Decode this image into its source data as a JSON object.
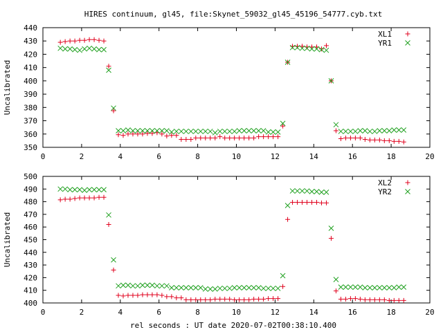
{
  "title": "HIRES continuum, gl45, file:Skynet_59032_gl45_45196_54777.cyb.txt",
  "xlabel": "rel seconds : UT date 2020-07-02T00:38:10.400",
  "colors": {
    "red": "#e0001c",
    "green": "#1fa01f",
    "axis": "#000000"
  },
  "chart_data": [
    {
      "type": "scatter",
      "ylabel": "Uncalibrated",
      "xlim": [
        0,
        20
      ],
      "ylim": [
        350,
        440
      ],
      "xticks": [
        0,
        2,
        4,
        6,
        8,
        10,
        12,
        14,
        16,
        18,
        20
      ],
      "yticks": [
        350,
        360,
        370,
        380,
        390,
        400,
        410,
        420,
        430,
        440
      ],
      "series": [
        {
          "name": "XL1",
          "marker": "plus",
          "color": "#e0001c",
          "x": [
            0.9,
            1.15,
            1.4,
            1.65,
            1.9,
            2.15,
            2.4,
            2.65,
            2.9,
            3.15,
            3.4,
            3.65,
            3.9,
            4.15,
            4.4,
            4.65,
            4.9,
            5.15,
            5.4,
            5.65,
            5.9,
            6.15,
            6.4,
            6.65,
            6.9,
            7.15,
            7.4,
            7.65,
            7.9,
            8.15,
            8.4,
            8.65,
            8.9,
            9.15,
            9.4,
            9.65,
            9.9,
            10.15,
            10.4,
            10.65,
            10.9,
            11.15,
            11.4,
            11.65,
            11.9,
            12.15,
            12.4,
            12.65,
            12.9,
            13.15,
            13.4,
            13.65,
            13.9,
            14.15,
            14.4,
            14.65,
            14.9,
            15.15,
            15.4,
            15.65,
            15.9,
            16.15,
            16.4,
            16.65,
            16.9,
            17.15,
            17.4,
            17.65,
            17.9,
            18.15,
            18.4,
            18.65
          ],
          "y": [
            429,
            429.5,
            430,
            430,
            430.5,
            430.5,
            431,
            431,
            430.5,
            430,
            411,
            377.5,
            359.5,
            359,
            360,
            360,
            360,
            360,
            360.5,
            360.5,
            361,
            360,
            358.5,
            359,
            359,
            356,
            356,
            356,
            357,
            357,
            357,
            357,
            357,
            358,
            357,
            357,
            357,
            357,
            357,
            357,
            357,
            358,
            358,
            358,
            358,
            358,
            366,
            414,
            426,
            426,
            426,
            425.5,
            425.5,
            425.5,
            424,
            426.5,
            400,
            362.5,
            356.5,
            357,
            357,
            357,
            357,
            356,
            355.5,
            355.5,
            355.5,
            355,
            355,
            354.5,
            354.5,
            354
          ]
        },
        {
          "name": "YR1",
          "marker": "cross",
          "color": "#1fa01f",
          "x": [
            0.9,
            1.15,
            1.4,
            1.65,
            1.9,
            2.15,
            2.4,
            2.65,
            2.9,
            3.15,
            3.4,
            3.65,
            3.9,
            4.15,
            4.4,
            4.65,
            4.9,
            5.15,
            5.4,
            5.65,
            5.9,
            6.15,
            6.4,
            6.65,
            6.9,
            7.15,
            7.4,
            7.65,
            7.9,
            8.15,
            8.4,
            8.65,
            8.9,
            9.15,
            9.4,
            9.65,
            9.9,
            10.15,
            10.4,
            10.65,
            10.9,
            11.15,
            11.4,
            11.65,
            11.9,
            12.15,
            12.4,
            12.65,
            12.9,
            13.15,
            13.4,
            13.65,
            13.9,
            14.15,
            14.4,
            14.65,
            14.9,
            15.15,
            15.4,
            15.65,
            15.9,
            16.15,
            16.4,
            16.65,
            16.9,
            17.15,
            17.4,
            17.65,
            17.9,
            18.15,
            18.4,
            18.65
          ],
          "y": [
            424.5,
            424,
            424,
            423.5,
            423,
            424,
            424.5,
            424,
            423.5,
            423.5,
            408,
            379.5,
            362.5,
            362.5,
            363,
            362.5,
            362.5,
            362.5,
            362.5,
            362.5,
            362.5,
            362.5,
            362.5,
            361.5,
            362,
            362,
            362,
            362,
            362,
            362,
            362,
            362,
            361,
            362,
            362,
            362,
            362,
            362.5,
            362.5,
            362.5,
            362.5,
            362.5,
            362.5,
            361.5,
            361.5,
            361.5,
            368,
            414,
            425,
            425,
            424.5,
            424.5,
            424,
            424,
            423.5,
            423,
            400,
            367,
            362,
            362,
            362,
            362,
            362.5,
            362.5,
            362,
            362,
            362.5,
            362.5,
            362.5,
            363,
            363,
            363
          ]
        }
      ]
    },
    {
      "type": "scatter",
      "ylabel": "Uncalibrated",
      "xlim": [
        0,
        20
      ],
      "ylim": [
        400,
        500
      ],
      "xticks": [
        0,
        2,
        4,
        6,
        8,
        10,
        12,
        14,
        16,
        18,
        20
      ],
      "yticks": [
        400,
        410,
        420,
        430,
        440,
        450,
        460,
        470,
        480,
        490,
        500
      ],
      "series": [
        {
          "name": "XL2",
          "marker": "plus",
          "color": "#e0001c",
          "x": [
            0.9,
            1.15,
            1.4,
            1.65,
            1.9,
            2.15,
            2.4,
            2.65,
            2.9,
            3.15,
            3.4,
            3.65,
            3.9,
            4.15,
            4.4,
            4.65,
            4.9,
            5.15,
            5.4,
            5.65,
            5.9,
            6.15,
            6.4,
            6.65,
            6.9,
            7.15,
            7.4,
            7.65,
            7.9,
            8.15,
            8.4,
            8.65,
            8.9,
            9.15,
            9.4,
            9.65,
            9.9,
            10.15,
            10.4,
            10.65,
            10.9,
            11.15,
            11.4,
            11.65,
            11.9,
            12.15,
            12.4,
            12.65,
            12.9,
            13.15,
            13.4,
            13.65,
            13.9,
            14.15,
            14.4,
            14.65,
            14.9,
            15.15,
            15.4,
            15.65,
            15.9,
            16.15,
            16.4,
            16.65,
            16.9,
            17.15,
            17.4,
            17.65,
            17.9,
            18.15,
            18.4,
            18.65
          ],
          "y": [
            481.5,
            482,
            482,
            482.5,
            483,
            483,
            483,
            483,
            483.5,
            483.5,
            462,
            426,
            406,
            405.5,
            406,
            406,
            406,
            406.5,
            406.5,
            406.5,
            406.5,
            406,
            405,
            405,
            404,
            404,
            402.5,
            402.5,
            402.5,
            402.5,
            402.5,
            402.5,
            403,
            403,
            403,
            403,
            402.5,
            402.5,
            402.5,
            402.5,
            403,
            403,
            403,
            403.5,
            403.5,
            403.5,
            413,
            466,
            479.5,
            479.5,
            479.5,
            479.5,
            479.5,
            479.5,
            479,
            479,
            451,
            409.5,
            403,
            403,
            403.5,
            403.5,
            403,
            402.5,
            402.5,
            402.5,
            402.5,
            402.5,
            402,
            402,
            402,
            402
          ]
        },
        {
          "name": "YR2",
          "marker": "cross",
          "color": "#1fa01f",
          "x": [
            0.9,
            1.15,
            1.4,
            1.65,
            1.9,
            2.15,
            2.4,
            2.65,
            2.9,
            3.15,
            3.4,
            3.65,
            3.9,
            4.15,
            4.4,
            4.65,
            4.9,
            5.15,
            5.4,
            5.65,
            5.9,
            6.15,
            6.4,
            6.65,
            6.9,
            7.15,
            7.4,
            7.65,
            7.9,
            8.15,
            8.4,
            8.65,
            8.9,
            9.15,
            9.4,
            9.65,
            9.9,
            10.15,
            10.4,
            10.65,
            10.9,
            11.15,
            11.4,
            11.65,
            11.9,
            12.15,
            12.4,
            12.65,
            12.9,
            13.15,
            13.4,
            13.65,
            13.9,
            14.15,
            14.4,
            14.65,
            14.9,
            15.15,
            15.4,
            15.65,
            15.9,
            16.15,
            16.4,
            16.65,
            16.9,
            17.15,
            17.4,
            17.65,
            17.9,
            18.15,
            18.4,
            18.65
          ],
          "y": [
            490,
            490,
            489.5,
            489.5,
            489.5,
            489,
            489.5,
            489.5,
            489.5,
            489.5,
            469.5,
            434,
            413.5,
            414,
            414,
            413.5,
            413.5,
            414,
            414,
            414,
            413.5,
            413.5,
            413.5,
            412,
            412,
            412,
            412,
            412,
            412,
            412,
            411,
            411,
            411,
            411.5,
            411.5,
            411.5,
            412,
            412,
            412,
            412,
            412,
            412,
            411.5,
            411.5,
            411.5,
            411.5,
            421.5,
            477,
            488.5,
            488.5,
            488.5,
            488.5,
            488,
            488,
            487.5,
            487.5,
            459,
            418.5,
            412.5,
            412.5,
            412.5,
            412.5,
            412.5,
            412,
            412,
            412,
            412,
            412,
            412,
            412,
            412.5,
            412.5
          ]
        }
      ]
    }
  ]
}
